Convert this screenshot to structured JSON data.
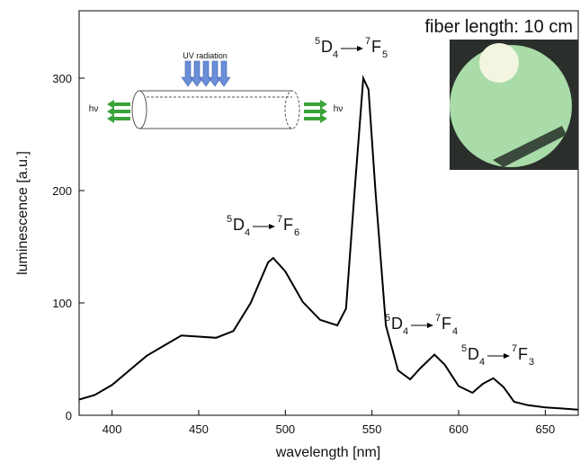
{
  "chart_data": {
    "type": "line",
    "x_label": "wavelength [nm]",
    "y_label": "luminescence [a.u.]",
    "x": [
      381,
      390,
      400,
      410,
      420,
      430,
      440,
      450,
      460,
      470,
      480,
      490,
      493,
      500,
      510,
      520,
      530,
      535,
      540,
      545,
      548,
      552,
      558,
      565,
      572,
      578,
      586,
      592,
      600,
      608,
      614,
      620,
      626,
      632,
      640,
      650,
      660,
      669
    ],
    "series": [
      {
        "color": "#000000",
        "values": [
          14,
          18,
          27,
          40,
          53,
          62,
          71,
          70,
          69,
          75,
          100,
          136,
          140,
          128,
          101,
          85,
          80,
          95,
          200,
          300,
          290,
          200,
          80,
          40,
          32,
          42,
          54,
          45,
          26,
          20,
          28,
          33,
          25,
          12,
          9,
          7,
          6,
          5
        ]
      }
    ],
    "xlim": [
      381,
      669
    ],
    "ylim": [
      0,
      360
    ],
    "xticks": [
      400,
      450,
      500,
      550,
      600,
      650
    ],
    "yticks": [
      0,
      100,
      200,
      300
    ],
    "annotations": [
      {
        "text": "fiber length: 10 cm"
      },
      {
        "parts": [
          "5",
          "D",
          "4",
          "7",
          "F",
          "5"
        ]
      },
      {
        "parts": [
          "5",
          "D",
          "4",
          "7",
          "F",
          "6"
        ]
      },
      {
        "parts": [
          "5",
          "D",
          "4",
          "7",
          "F",
          "4"
        ]
      },
      {
        "parts": [
          "5",
          "D",
          "4",
          "7",
          "F",
          "3"
        ]
      },
      {
        "text": "UV radiation"
      },
      {
        "text": "hν"
      },
      {
        "text": "hν"
      }
    ]
  }
}
